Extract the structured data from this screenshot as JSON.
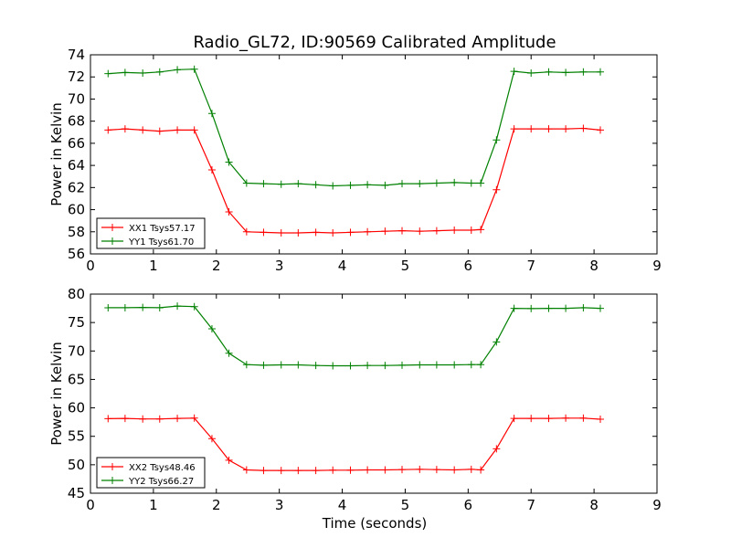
{
  "figure": {
    "title": "Radio_GL72, ID:90569 Calibrated Amplitude",
    "xlabel": "Time (seconds)"
  },
  "colors": {
    "xx": "#ff0000",
    "yy": "#008000",
    "axes": "#000000",
    "background": "#ffffff"
  },
  "chart_data": [
    {
      "type": "line",
      "title": "Radio_GL72, ID:90569 Calibrated Amplitude",
      "xlabel": "",
      "ylabel": "Power in Kelvin",
      "xlim": [
        0,
        9
      ],
      "ylim": [
        56,
        74
      ],
      "xticks": [
        "0",
        "1",
        "2",
        "3",
        "4",
        "5",
        "6",
        "7",
        "8",
        "9"
      ],
      "yticks": [
        "56",
        "58",
        "60",
        "62",
        "64",
        "66",
        "68",
        "70",
        "72",
        "74"
      ],
      "grid": false,
      "legend_position": "lower-left",
      "x": [
        0.28,
        0.55,
        0.83,
        1.1,
        1.38,
        1.65,
        1.93,
        2.2,
        2.48,
        2.75,
        3.03,
        3.3,
        3.58,
        3.85,
        4.13,
        4.4,
        4.68,
        4.95,
        5.23,
        5.5,
        5.78,
        6.05,
        6.2,
        6.45,
        6.73,
        7.0,
        7.28,
        7.55,
        7.83,
        8.1
      ],
      "series": [
        {
          "name": "XX1 Tsys57.17",
          "color": "#ff0000",
          "values": [
            67.2,
            67.3,
            67.2,
            67.1,
            67.2,
            67.2,
            63.6,
            59.8,
            58.0,
            57.95,
            57.9,
            57.9,
            57.95,
            57.9,
            57.95,
            58.0,
            58.05,
            58.1,
            58.05,
            58.1,
            58.15,
            58.15,
            58.2,
            61.8,
            67.3,
            67.3,
            67.3,
            67.3,
            67.35,
            67.2
          ]
        },
        {
          "name": "YY1 Tsys61.70",
          "color": "#008000",
          "values": [
            72.3,
            72.4,
            72.35,
            72.45,
            72.65,
            72.7,
            68.7,
            64.3,
            62.4,
            62.35,
            62.3,
            62.35,
            62.25,
            62.15,
            62.2,
            62.25,
            62.2,
            62.35,
            62.35,
            62.4,
            62.45,
            62.4,
            62.4,
            66.3,
            72.5,
            72.35,
            72.45,
            72.4,
            72.45,
            72.45
          ]
        }
      ]
    },
    {
      "type": "line",
      "title": "",
      "xlabel": "Time (seconds)",
      "ylabel": "Power in Kelvin",
      "xlim": [
        0,
        9
      ],
      "ylim": [
        45,
        80
      ],
      "xticks": [
        "0",
        "1",
        "2",
        "3",
        "4",
        "5",
        "6",
        "7",
        "8",
        "9"
      ],
      "yticks": [
        "45",
        "50",
        "55",
        "60",
        "65",
        "70",
        "75",
        "80"
      ],
      "grid": false,
      "legend_position": "lower-left",
      "x": [
        0.28,
        0.55,
        0.83,
        1.1,
        1.38,
        1.65,
        1.93,
        2.2,
        2.48,
        2.75,
        3.03,
        3.3,
        3.58,
        3.85,
        4.13,
        4.4,
        4.68,
        4.95,
        5.23,
        5.5,
        5.78,
        6.05,
        6.2,
        6.45,
        6.73,
        7.0,
        7.28,
        7.55,
        7.83,
        8.1
      ],
      "series": [
        {
          "name": "XX2 Tsys48.46",
          "color": "#ff0000",
          "values": [
            58.1,
            58.15,
            58.05,
            58.05,
            58.15,
            58.2,
            54.6,
            50.8,
            49.1,
            49.0,
            49.0,
            49.0,
            49.0,
            49.05,
            49.05,
            49.1,
            49.1,
            49.15,
            49.2,
            49.15,
            49.1,
            49.2,
            49.1,
            52.8,
            58.15,
            58.15,
            58.15,
            58.2,
            58.2,
            58.0
          ]
        },
        {
          "name": "YY2 Tsys66.27",
          "color": "#008000",
          "values": [
            77.6,
            77.6,
            77.65,
            77.6,
            77.9,
            77.8,
            73.9,
            69.6,
            67.6,
            67.5,
            67.55,
            67.55,
            67.45,
            67.4,
            67.4,
            67.45,
            67.45,
            67.5,
            67.55,
            67.55,
            67.55,
            67.6,
            67.6,
            71.6,
            77.5,
            77.45,
            77.5,
            77.5,
            77.6,
            77.5
          ]
        }
      ]
    }
  ]
}
